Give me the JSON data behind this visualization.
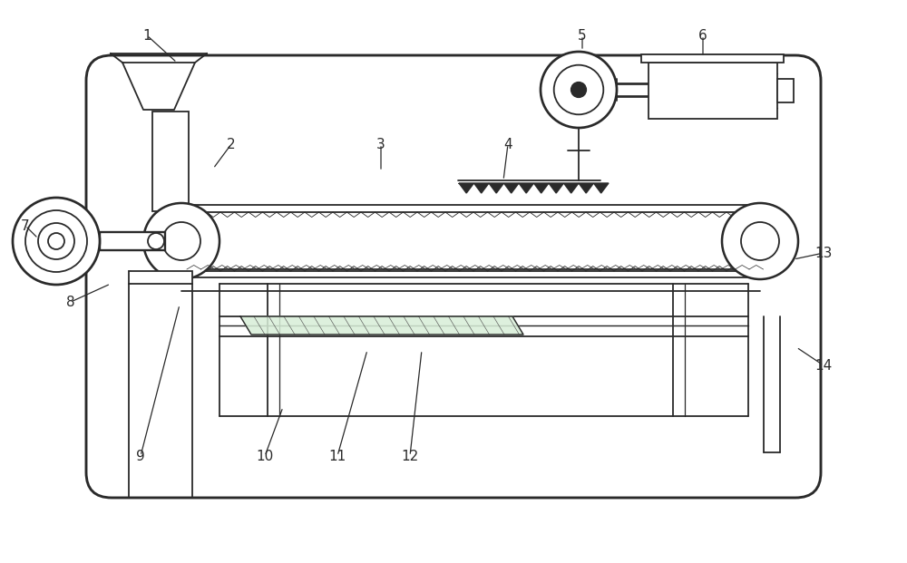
{
  "bg_color": "#ffffff",
  "line_color": "#2a2a2a",
  "lw": 1.3,
  "fig_width": 10.0,
  "fig_height": 6.21,
  "annotations": {
    "1": {
      "tp": [
        1.62,
        5.82
      ],
      "le": [
        1.95,
        5.52
      ]
    },
    "2": {
      "tp": [
        2.55,
        4.62
      ],
      "le": [
        2.35,
        4.35
      ]
    },
    "3": {
      "tp": [
        4.2,
        4.62
      ],
      "le": [
        4.2,
        4.32
      ]
    },
    "4": {
      "tp": [
        5.6,
        4.62
      ],
      "le": [
        5.55,
        4.22
      ]
    },
    "5": {
      "tp": [
        6.42,
        5.82
      ],
      "le": [
        6.42,
        5.65
      ]
    },
    "6": {
      "tp": [
        7.75,
        5.82
      ],
      "le": [
        7.75,
        5.58
      ]
    },
    "7": {
      "tp": [
        0.28,
        3.72
      ],
      "le": [
        0.42,
        3.58
      ]
    },
    "8": {
      "tp": [
        0.78,
        2.88
      ],
      "le": [
        1.22,
        3.08
      ]
    },
    "9": {
      "tp": [
        1.55,
        1.18
      ],
      "le": [
        1.98,
        2.85
      ]
    },
    "10": {
      "tp": [
        2.92,
        1.18
      ],
      "le": [
        3.12,
        1.72
      ]
    },
    "11": {
      "tp": [
        3.72,
        1.18
      ],
      "le": [
        4.05,
        2.35
      ]
    },
    "12": {
      "tp": [
        4.52,
        1.18
      ],
      "le": [
        4.65,
        2.35
      ]
    },
    "13": {
      "tp": [
        9.08,
        3.42
      ],
      "le": [
        8.75,
        3.35
      ]
    },
    "14": {
      "tp": [
        9.08,
        2.18
      ],
      "le": [
        8.78,
        2.38
      ]
    }
  }
}
